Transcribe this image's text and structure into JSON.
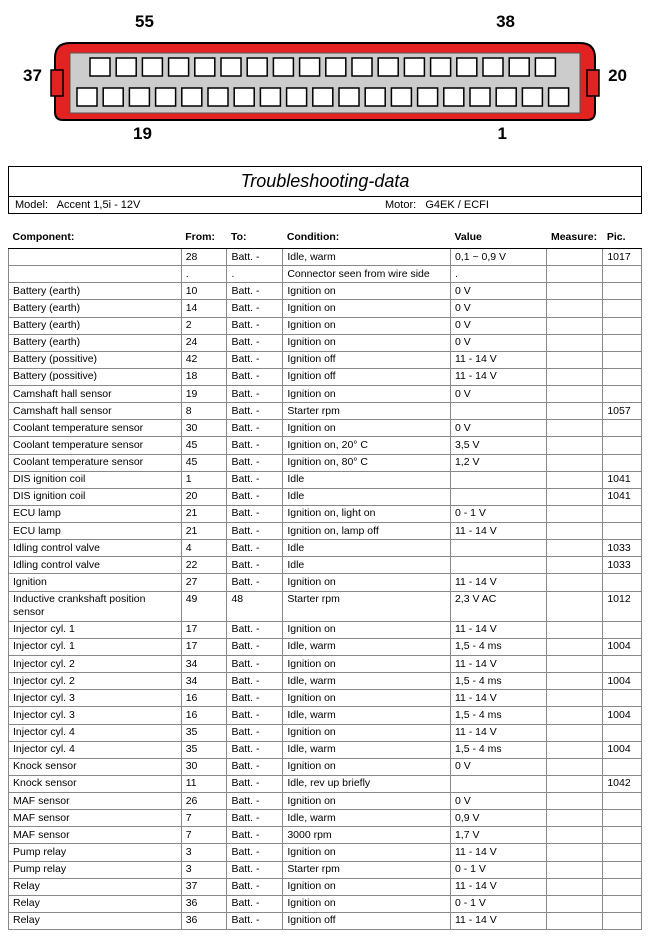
{
  "connector": {
    "labels": {
      "tl": "55",
      "tr": "38",
      "ml": "37",
      "mr": "20",
      "bl": "19",
      "br": "1"
    },
    "colors": {
      "body": "#e32222",
      "slot_fill": "#ffffff",
      "slot_stroke": "#000000",
      "inner_stroke": "#888888"
    }
  },
  "title": "Troubleshooting-data",
  "model_label": "Model:",
  "model": "Accent 1,5i - 12V",
  "motor_label": "Motor:",
  "motor": "G4EK / ECFI",
  "columns": [
    "Component:",
    "From:",
    "To:",
    "Condition:",
    "Value",
    "Measure:",
    "Pic."
  ],
  "rows": [
    [
      "",
      "28",
      "Batt. -",
      "Idle, warm",
      "0,1 ~ 0,9 V",
      "",
      "1017"
    ],
    [
      "",
      ".",
      ".",
      "Connector seen from wire side",
      ".",
      "",
      ""
    ],
    [
      "Battery (earth)",
      "10",
      "Batt. -",
      "Ignition on",
      "0 V",
      "",
      ""
    ],
    [
      "Battery (earth)",
      "14",
      "Batt. -",
      "Ignition on",
      "0 V",
      "",
      ""
    ],
    [
      "Battery (earth)",
      "2",
      "Batt. -",
      "Ignition on",
      "0 V",
      "",
      ""
    ],
    [
      "Battery (earth)",
      "24",
      "Batt. -",
      "Ignition on",
      "0 V",
      "",
      ""
    ],
    [
      "Battery (possitive)",
      "42",
      "Batt. -",
      "Ignition off",
      "11 - 14 V",
      "",
      ""
    ],
    [
      "Battery (possitive)",
      "18",
      "Batt. -",
      "Ignition off",
      "11 - 14 V",
      "",
      ""
    ],
    [
      "Camshaft hall sensor",
      "19",
      "Batt. -",
      "Ignition on",
      "0 V",
      "",
      ""
    ],
    [
      "Camshaft hall sensor",
      "8",
      "Batt. -",
      "Starter rpm",
      "",
      "",
      "1057"
    ],
    [
      "Coolant temperature sensor",
      "30",
      "Batt. -",
      "Ignition on",
      "0 V",
      "",
      ""
    ],
    [
      "Coolant temperature sensor",
      "45",
      "Batt. -",
      "Ignition on, 20° C",
      "3,5 V",
      "",
      ""
    ],
    [
      "Coolant temperature sensor",
      "45",
      "Batt. -",
      "Ignition on, 80° C",
      "1,2 V",
      "",
      ""
    ],
    [
      "DIS ignition coil",
      "1",
      "Batt. -",
      "Idle",
      "",
      "",
      "1041"
    ],
    [
      "DIS ignition coil",
      "20",
      "Batt. -",
      "Idle",
      "",
      "",
      "1041"
    ],
    [
      "ECU lamp",
      "21",
      "Batt. -",
      "Ignition on, light on",
      "0 - 1 V",
      "",
      ""
    ],
    [
      "ECU lamp",
      "21",
      "Batt. -",
      "Ignition on, lamp off",
      "11 - 14 V",
      "",
      ""
    ],
    [
      "Idling control valve",
      "4",
      "Batt. -",
      "Idle",
      "",
      "",
      "1033"
    ],
    [
      "Idling control valve",
      "22",
      "Batt. -",
      "Idle",
      "",
      "",
      "1033"
    ],
    [
      "Ignition",
      "27",
      "Batt. -",
      "Ignition on",
      "11 - 14 V",
      "",
      ""
    ],
    [
      "Inductive crankshaft position sensor",
      "49",
      "48",
      "Starter rpm",
      "2,3 V AC",
      "",
      "1012"
    ],
    [
      "Injector cyl. 1",
      "17",
      "Batt. -",
      "Ignition on",
      "11 - 14 V",
      "",
      ""
    ],
    [
      "Injector cyl. 1",
      "17",
      "Batt. -",
      "Idle, warm",
      "1,5 - 4 ms",
      "",
      "1004"
    ],
    [
      "Injector cyl. 2",
      "34",
      "Batt. -",
      "Ignition on",
      "11 - 14 V",
      "",
      ""
    ],
    [
      "Injector cyl. 2",
      "34",
      "Batt. -",
      "Idle, warm",
      "1,5 - 4 ms",
      "",
      "1004"
    ],
    [
      "Injector cyl. 3",
      "16",
      "Batt. -",
      "Ignition on",
      "11 - 14 V",
      "",
      ""
    ],
    [
      "Injector cyl. 3",
      "16",
      "Batt. -",
      "Idle, warm",
      "1,5 - 4 ms",
      "",
      "1004"
    ],
    [
      "Injector cyl. 4",
      "35",
      "Batt. -",
      "Ignition on",
      "11 - 14 V",
      "",
      ""
    ],
    [
      "Injector cyl. 4",
      "35",
      "Batt. -",
      "Idle, warm",
      "1,5 - 4 ms",
      "",
      "1004"
    ],
    [
      "Knock sensor",
      "30",
      "Batt. -",
      "Ignition on",
      "0 V",
      "",
      ""
    ],
    [
      "Knock sensor",
      "11",
      "Batt. -",
      "Idle, rev up briefly",
      "",
      "",
      "1042"
    ],
    [
      "MAF sensor",
      "26",
      "Batt. -",
      "Ignition on",
      "0 V",
      "",
      ""
    ],
    [
      "MAF sensor",
      "7",
      "Batt. -",
      "Idle, warm",
      "0,9 V",
      "",
      ""
    ],
    [
      "MAF sensor",
      "7",
      "Batt. -",
      "3000 rpm",
      "1,7 V",
      "",
      ""
    ],
    [
      "Pump relay",
      "3",
      "Batt. -",
      "Ignition on",
      "11 - 14 V",
      "",
      ""
    ],
    [
      "Pump relay",
      "3",
      "Batt. -",
      "Starter rpm",
      "0 - 1 V",
      "",
      ""
    ],
    [
      "Relay",
      "37",
      "Batt. -",
      "Ignition on",
      "11 - 14 V",
      "",
      ""
    ],
    [
      "Relay",
      "36",
      "Batt. -",
      "Ignition on",
      "0 - 1 V",
      "",
      ""
    ],
    [
      "Relay",
      "36",
      "Batt. -",
      "Ignition off",
      "11 - 14 V",
      "",
      ""
    ]
  ]
}
